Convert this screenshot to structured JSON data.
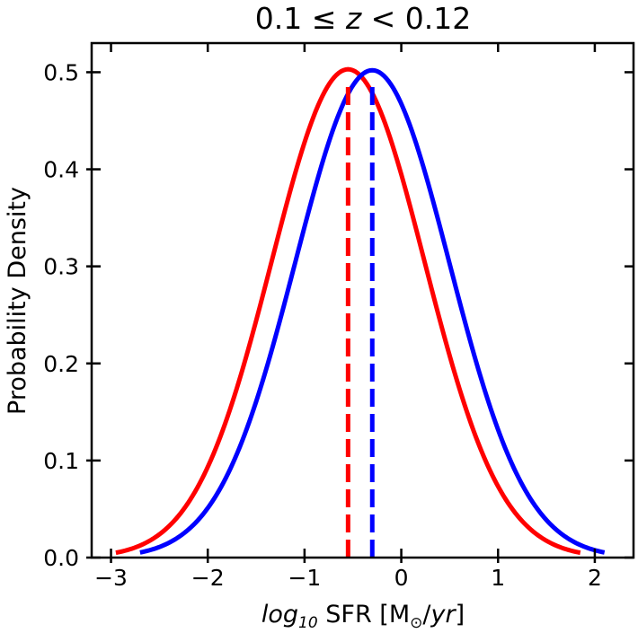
{
  "chart_data": {
    "type": "line",
    "title": "0.1 ≤ z < 0.12",
    "title_parts": {
      "left": "0.1 ≤ ",
      "var": "z",
      "right": " < 0.12"
    },
    "xlabel": "log10 SFR [M⊙/yr]",
    "xlabel_parts": {
      "log": "log",
      "sub": "10",
      "mid": " SFR [M",
      "sun": "⊙",
      "slash": "/",
      "yr": "yr",
      "close": "]"
    },
    "ylabel": "Probability Density",
    "xlim": [
      -3.2,
      2.4
    ],
    "ylim": [
      0.0,
      0.53
    ],
    "xticks": [
      -3,
      -2,
      -1,
      0,
      1,
      2
    ],
    "xtick_labels": [
      "−3",
      "−2",
      "−1",
      "0",
      "1",
      "2"
    ],
    "yticks": [
      0.0,
      0.1,
      0.2,
      0.3,
      0.4,
      0.5
    ],
    "ytick_labels": [
      "0.0",
      "0.1",
      "0.2",
      "0.3",
      "0.4",
      "0.5"
    ],
    "grid": false,
    "series": [
      {
        "name": "red",
        "color": "#ff0000",
        "distribution": "gaussian",
        "mean": -0.55,
        "sigma": 0.79,
        "peak": 0.503,
        "x_range": [
          -2.95,
          1.85
        ],
        "median_line_x": -0.55,
        "median_line_top": 0.49
      },
      {
        "name": "blue",
        "color": "#0000ff",
        "distribution": "gaussian",
        "mean": -0.3,
        "sigma": 0.795,
        "peak": 0.502,
        "x_range": [
          -2.7,
          2.1
        ],
        "median_line_x": -0.3,
        "median_line_top": 0.49
      }
    ]
  }
}
